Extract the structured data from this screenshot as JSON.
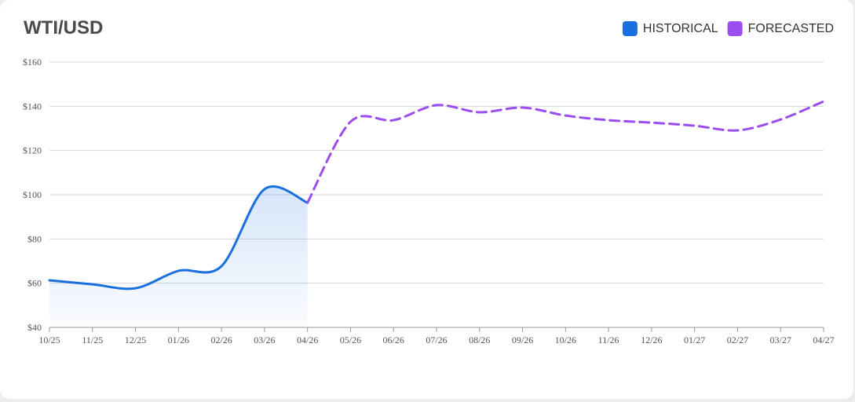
{
  "chart_data": {
    "type": "line",
    "title": "WTI/USD",
    "categories": [
      "10/25",
      "11/25",
      "12/25",
      "01/26",
      "02/26",
      "03/26",
      "04/26",
      "05/26",
      "06/26",
      "07/26",
      "08/26",
      "09/26",
      "10/26",
      "11/26",
      "12/26",
      "01/27",
      "02/27",
      "03/27",
      "04/27"
    ],
    "series": [
      {
        "name": "HISTORICAL",
        "color": "#1a6fe0",
        "style": "solid",
        "area": true,
        "values": [
          61.3,
          59.5,
          57.7,
          65.6,
          67.7,
          102.5,
          96.4,
          null,
          null,
          null,
          null,
          null,
          null,
          null,
          null,
          null,
          null,
          null,
          null
        ]
      },
      {
        "name": "FORECASTED",
        "color": "#9b4df0",
        "style": "dashed",
        "area": false,
        "values": [
          null,
          null,
          null,
          null,
          null,
          null,
          96.4,
          133,
          133.7,
          140.5,
          137.3,
          139.4,
          135.8,
          133.7,
          132.6,
          131.2,
          129.1,
          134,
          142.2
        ]
      }
    ],
    "ylim": [
      40,
      160
    ],
    "yticks": [
      {
        "value": 40,
        "label": "$40"
      },
      {
        "value": 60,
        "label": "$60"
      },
      {
        "value": 80,
        "label": "$80"
      },
      {
        "value": 100,
        "label": "$100"
      },
      {
        "value": 120,
        "label": "$120"
      },
      {
        "value": 140,
        "label": "$140"
      },
      {
        "value": 160,
        "label": "$160"
      }
    ],
    "grid": true
  }
}
